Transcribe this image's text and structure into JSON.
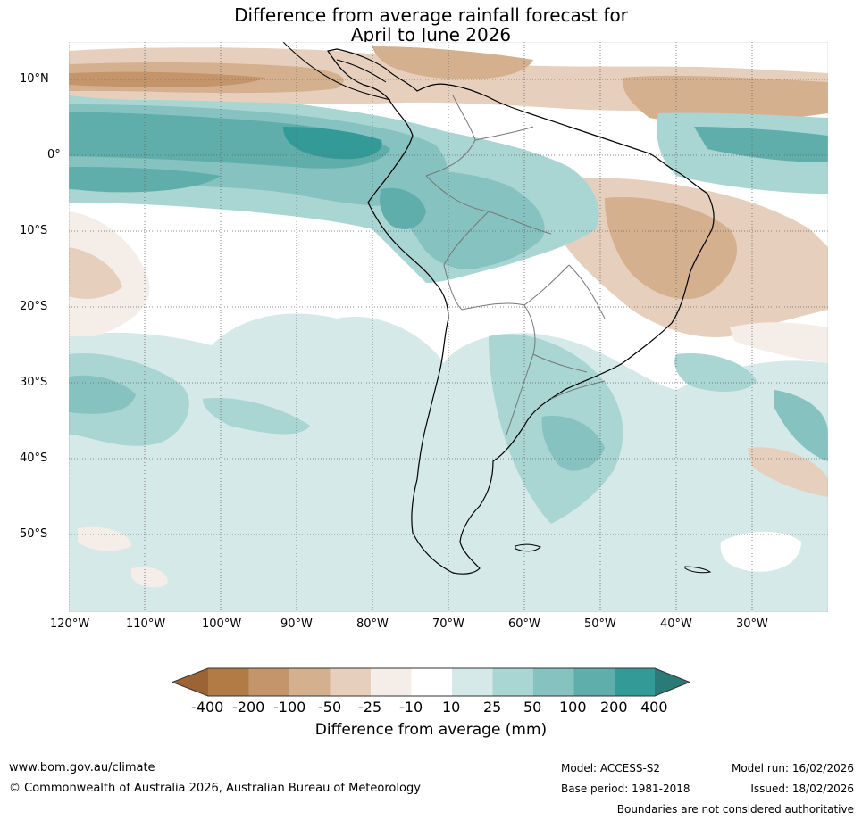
{
  "title": {
    "line1": "Difference from average rainfall forecast for",
    "line2": "April to June 2026"
  },
  "map": {
    "latitude_labels": [
      "10°N",
      "0°",
      "10°S",
      "20°S",
      "30°S",
      "40°S",
      "50°S"
    ],
    "longitude_labels": [
      "120°W",
      "110°W",
      "100°W",
      "90°W",
      "80°W",
      "70°W",
      "60°W",
      "50°W",
      "40°W",
      "30°W"
    ]
  },
  "legend": {
    "title": "Difference from average (mm)",
    "ticks": [
      "-400",
      "-200",
      "-100",
      "-50",
      "-25",
      "-10",
      "10",
      "25",
      "50",
      "100",
      "200",
      "400"
    ],
    "colors": [
      "#9c6434",
      "#b27b45",
      "#c4956a",
      "#d5b08f",
      "#e6d0bd",
      "#f5ede7",
      "#ffffff",
      "#d4e9e8",
      "#a9d5d3",
      "#85c2c0",
      "#5faeac",
      "#339a97",
      "#2a7b78"
    ]
  },
  "footer": {
    "url": "www.bom.gov.au/climate",
    "copyright": "© Commonwealth of Australia 2026, Australian Bureau of Meteorology",
    "model": "Model: ACCESS-S2",
    "base_period": "Base period: 1981-2018",
    "model_run": "Model run: 16/02/2026",
    "issued": "Issued: 18/02/2026",
    "disclaimer": "Boundaries are not considered authoritative"
  }
}
